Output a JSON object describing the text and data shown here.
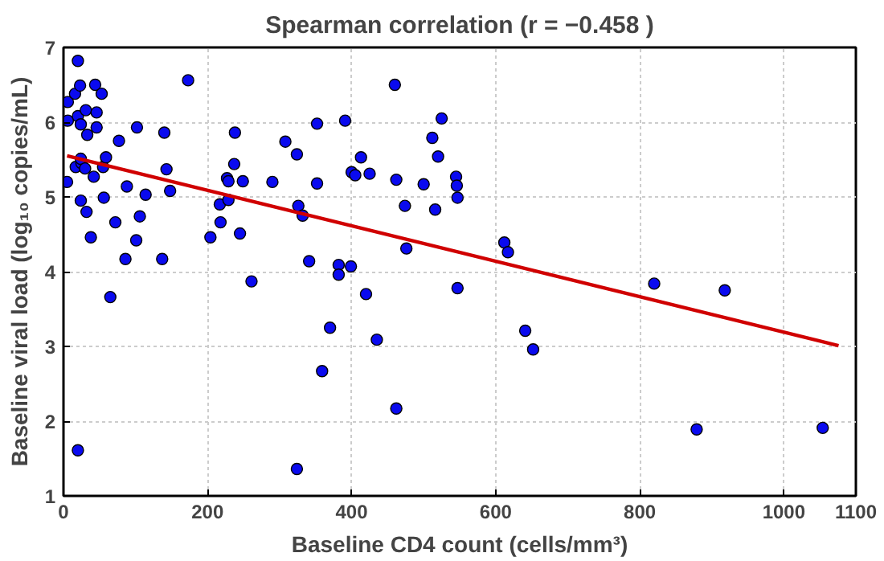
{
  "chart_data": {
    "type": "scatter",
    "title": "Spearman correlation (r = −0.458 )",
    "xlabel": "Baseline CD4 count (cells/mm³)",
    "ylabel": "Baseline viral load (log₁₀ copies/mL)",
    "xlim": [
      0,
      1100
    ],
    "ylim": [
      1,
      7
    ],
    "xticks": [
      0,
      200,
      400,
      600,
      800,
      1000,
      1100
    ],
    "yticks": [
      1,
      2,
      3,
      4,
      5,
      6,
      7
    ],
    "grid": true,
    "series": [
      {
        "marker": "circle",
        "color": "#0a0aef",
        "x": [
          20,
          6,
          16,
          23,
          44,
          53,
          6,
          20,
          31,
          46,
          24,
          46,
          33,
          77,
          102,
          140,
          173,
          5,
          17,
          25,
          24,
          30,
          42,
          55,
          59,
          56,
          24,
          32,
          38,
          72,
          88,
          114,
          106,
          101,
          86,
          137,
          65,
          143,
          148,
          20,
          204,
          217,
          218,
          227,
          229,
          229,
          237,
          238,
          245,
          249,
          261,
          290,
          308,
          324,
          352,
          391,
          352,
          326,
          332,
          341,
          382,
          382,
          399,
          370,
          359,
          324,
          400,
          405,
          413,
          425,
          420,
          435,
          460,
          462,
          462,
          474,
          476,
          500,
          512,
          520,
          525,
          516,
          545,
          546,
          547,
          547,
          612,
          617,
          641,
          652,
          820,
          918,
          879,
          1054
        ],
        "values": [
          6.82,
          6.27,
          6.38,
          6.49,
          6.5,
          6.38,
          6.02,
          6.08,
          6.16,
          6.13,
          5.97,
          5.93,
          5.83,
          5.75,
          5.93,
          5.86,
          6.56,
          5.2,
          5.4,
          5.45,
          5.51,
          5.38,
          5.27,
          5.4,
          5.53,
          4.99,
          4.95,
          4.8,
          4.46,
          4.66,
          5.14,
          5.03,
          4.74,
          4.42,
          4.17,
          4.17,
          3.66,
          5.37,
          5.08,
          1.61,
          4.46,
          4.9,
          4.66,
          5.25,
          5.21,
          4.96,
          5.44,
          5.86,
          4.51,
          5.21,
          3.87,
          5.2,
          5.74,
          5.57,
          5.98,
          6.02,
          5.18,
          4.88,
          4.75,
          4.14,
          4.09,
          3.96,
          4.07,
          3.25,
          2.67,
          1.36,
          5.33,
          5.29,
          5.53,
          5.31,
          3.7,
          3.09,
          6.5,
          5.23,
          2.17,
          4.88,
          4.31,
          5.17,
          5.79,
          5.54,
          6.05,
          4.83,
          5.27,
          5.15,
          4.99,
          3.78,
          4.39,
          4.26,
          3.21,
          2.96,
          3.84,
          3.75,
          1.89,
          1.91
        ]
      },
      {
        "type": "line",
        "color": "#d00000",
        "x": [
          5,
          1076
        ],
        "values": [
          5.55,
          3.01
        ]
      }
    ]
  }
}
